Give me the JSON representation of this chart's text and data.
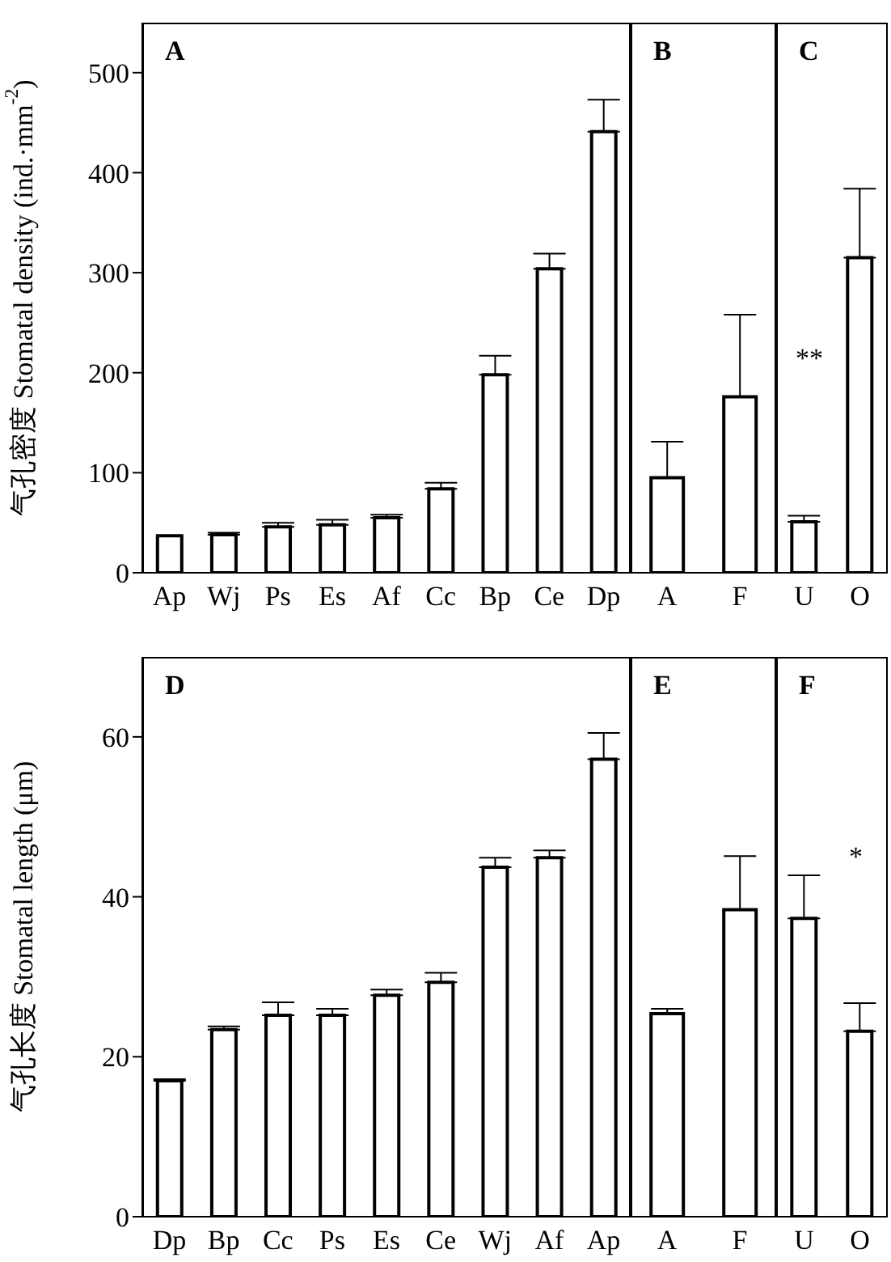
{
  "chart_data": [
    {
      "type": "bar",
      "title": "A",
      "ylabel": "气孔密度 Stomatal density (ind.·mm$^{-2}$)",
      "categories": [
        "Ap",
        "Wj",
        "Ps",
        "Es",
        "Af",
        "Cc",
        "Bp",
        "Ce",
        "Dp"
      ],
      "color": "#ffffff",
      "values": [
        37,
        38,
        46,
        48,
        55,
        84,
        198,
        304,
        441
      ],
      "errors": [
        null,
        [
          38,
          40
        ],
        [
          46,
          50
        ],
        [
          48,
          53
        ],
        [
          55,
          58
        ],
        [
          84,
          90
        ],
        [
          198,
          217
        ],
        [
          304,
          319
        ],
        [
          441,
          473
        ]
      ],
      "ylim": [
        0,
        550
      ],
      "yticks": [
        0,
        100,
        200,
        300,
        400,
        500
      ]
    },
    {
      "type": "bar",
      "title": "B",
      "categories": [
        "A",
        "F"
      ],
      "color": "#ffffff",
      "values": [
        95,
        176
      ],
      "errors": [
        [
          95,
          131
        ],
        [
          176,
          258
        ]
      ],
      "ylim": [
        0,
        550
      ],
      "yticks": [
        0,
        100,
        200,
        300,
        400,
        500
      ],
      "tick_labels": "x"
    },
    {
      "type": "bar",
      "title": "C",
      "categories": [
        "U",
        "O"
      ],
      "color": "#ffffff",
      "values": [
        51,
        315
      ],
      "errors": [
        [
          51,
          57
        ],
        [
          315,
          384
        ]
      ],
      "ylim": [
        0,
        550
      ],
      "yticks": [
        0,
        100,
        200,
        300,
        400,
        500
      ],
      "tick_labels": "x",
      "annotations": [
        "**"
      ]
    },
    {
      "type": "bar",
      "title": "D",
      "ylabel": "气孔长度 Stomatal length (μm)",
      "categories": [
        "Dp",
        "Bp",
        "Cc",
        "Ps",
        "Es",
        "Ce",
        "Wj",
        "Af",
        "Ap"
      ],
      "color": "#ffffff",
      "values": [
        17.0,
        23.4,
        25.2,
        25.2,
        27.7,
        29.3,
        43.7,
        44.9,
        57.2
      ],
      "errors": [
        [
          17.0,
          17.2
        ],
        [
          23.4,
          23.8
        ],
        [
          25.2,
          26.8
        ],
        [
          25.2,
          26.0
        ],
        [
          27.7,
          28.4
        ],
        [
          29.3,
          30.5
        ],
        [
          43.7,
          44.9
        ],
        [
          44.9,
          45.8
        ],
        [
          57.2,
          60.5
        ]
      ],
      "ylim": [
        0,
        70
      ],
      "yticks": [
        0,
        20,
        40,
        60
      ]
    },
    {
      "type": "bar",
      "title": "E",
      "categories": [
        "A",
        "F"
      ],
      "color": "#ffffff",
      "values": [
        25.4,
        38.4
      ],
      "errors": [
        [
          25.4,
          26.0
        ],
        [
          38.4,
          45.1
        ]
      ],
      "ylim": [
        0,
        70
      ],
      "yticks": [
        0,
        20,
        40,
        60
      ],
      "tick_labels": "x"
    },
    {
      "type": "bar",
      "title": "F",
      "categories": [
        "U",
        "O"
      ],
      "color": "#ffffff",
      "values": [
        37.3,
        23.2
      ],
      "errors": [
        [
          37.3,
          42.7
        ],
        [
          23.2,
          26.7
        ]
      ],
      "ylim": [
        0,
        70
      ],
      "yticks": [
        0,
        20,
        40,
        60
      ],
      "tick_labels": "x",
      "annotations": [
        "*"
      ]
    }
  ]
}
